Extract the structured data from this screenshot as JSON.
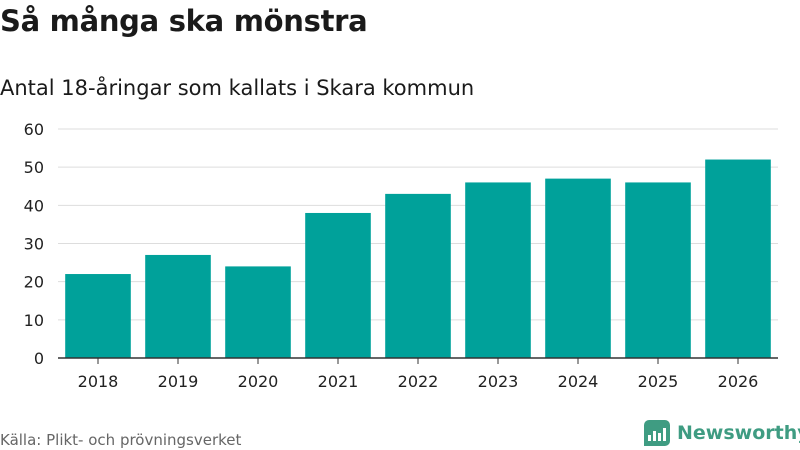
{
  "header": {
    "title": "Så många ska mönstra",
    "subtitle": "Antal 18-åringar som kallats i Skara kommun"
  },
  "footer": {
    "source": "Källa: Plikt- och prövningsverket",
    "brand": "Newsworthy"
  },
  "colors": {
    "bar": "#00a19a",
    "grid": "#dddddd",
    "axis": "#333333",
    "brand": "#3f9c82"
  },
  "chart_data": {
    "type": "bar",
    "title": "Så många ska mönstra",
    "subtitle": "Antal 18-åringar som kallats i Skara kommun",
    "xlabel": "",
    "ylabel": "",
    "categories": [
      "2018",
      "2019",
      "2020",
      "2021",
      "2022",
      "2023",
      "2024",
      "2025",
      "2026"
    ],
    "values": [
      22,
      27,
      24,
      38,
      43,
      46,
      47,
      46,
      52
    ],
    "ylim": [
      0,
      60
    ],
    "yticks": [
      0,
      10,
      20,
      30,
      40,
      50,
      60
    ],
    "grid": true,
    "legend": "none"
  }
}
